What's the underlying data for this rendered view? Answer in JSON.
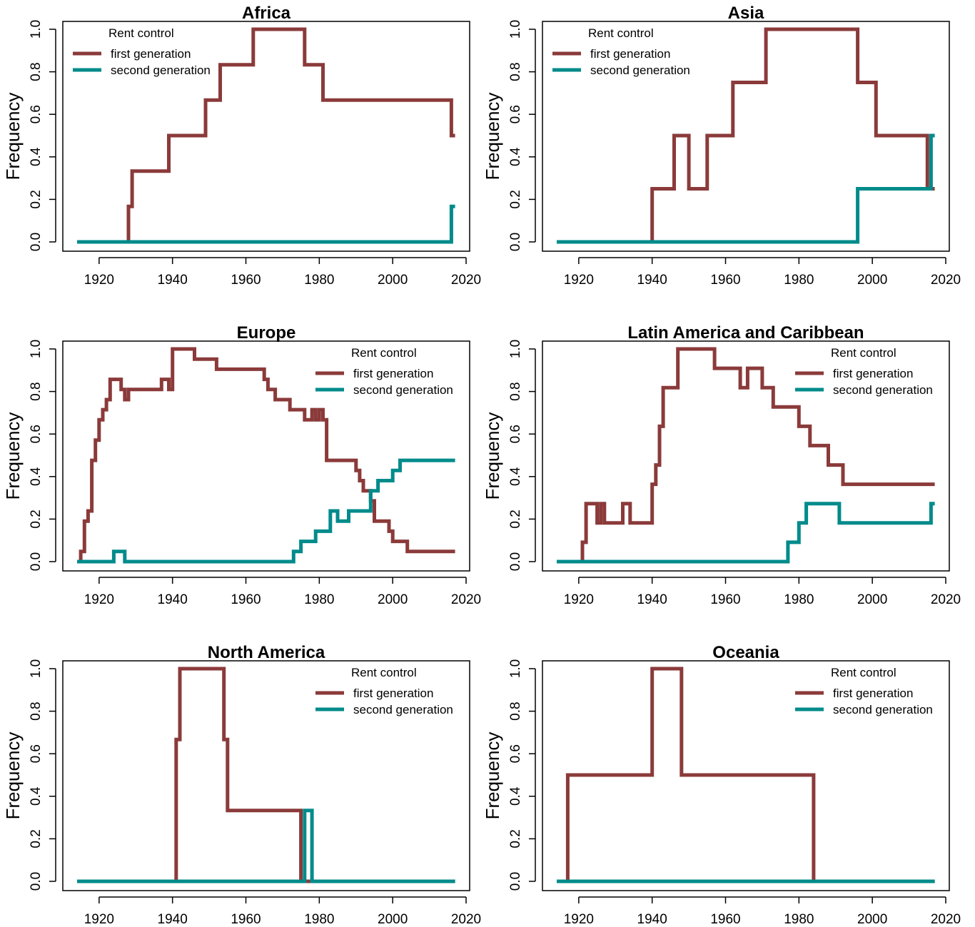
{
  "colors": {
    "first_generation": "#8B3A3A",
    "second_generation": "#008B8B"
  },
  "chart_data": [
    {
      "type": "line",
      "title": "Africa",
      "ylabel": "Frequency",
      "xlabel": "",
      "xlim": [
        1914,
        2017
      ],
      "ylim": [
        0,
        1
      ],
      "xticks": [
        1920,
        1940,
        1960,
        1980,
        2000,
        2020
      ],
      "yticks": [
        "0.0",
        "0.2",
        "0.4",
        "0.6",
        "0.8",
        "1.0"
      ],
      "legend": {
        "placement": "top-left",
        "title": "Rent control",
        "entries": [
          "first generation",
          "second generation"
        ]
      },
      "series": [
        {
          "name": "first generation",
          "step": true,
          "x": [
            1914,
            1928,
            1929,
            1939,
            1949,
            1953,
            1962,
            1976,
            1981,
            2016,
            2017
          ],
          "y": [
            0,
            0.1667,
            0.3333,
            0.5,
            0.6667,
            0.8333,
            1.0,
            0.8333,
            0.6667,
            0.5,
            0.5
          ]
        },
        {
          "name": "second generation",
          "step": true,
          "x": [
            1914,
            2016,
            2017
          ],
          "y": [
            0,
            0.1667,
            0.1667
          ]
        }
      ]
    },
    {
      "type": "line",
      "title": "Asia",
      "ylabel": "Frequency",
      "xlabel": "",
      "xlim": [
        1914,
        2017
      ],
      "ylim": [
        0,
        1
      ],
      "xticks": [
        1920,
        1940,
        1960,
        1980,
        2000,
        2020
      ],
      "yticks": [
        "0.0",
        "0.2",
        "0.4",
        "0.6",
        "0.8",
        "1.0"
      ],
      "legend": {
        "placement": "top-left",
        "title": "Rent control",
        "entries": [
          "first generation",
          "second generation"
        ]
      },
      "series": [
        {
          "name": "first generation",
          "step": true,
          "x": [
            1914,
            1940,
            1946,
            1950,
            1955,
            1962,
            1971,
            1996,
            2001,
            2015,
            2017
          ],
          "y": [
            0,
            0.25,
            0.5,
            0.25,
            0.5,
            0.75,
            1.0,
            0.75,
            0.5,
            0.25,
            0.25
          ]
        },
        {
          "name": "second generation",
          "step": true,
          "x": [
            1914,
            1996,
            2016,
            2017
          ],
          "y": [
            0,
            0.25,
            0.5,
            0.5
          ]
        }
      ]
    },
    {
      "type": "line",
      "title": "Europe",
      "ylabel": "Frequency",
      "xlabel": "",
      "xlim": [
        1914,
        2017
      ],
      "ylim": [
        0,
        1
      ],
      "xticks": [
        1920,
        1940,
        1960,
        1980,
        2000,
        2020
      ],
      "yticks": [
        "0.0",
        "0.2",
        "0.4",
        "0.6",
        "0.8",
        "1.0"
      ],
      "legend": {
        "placement": "top-right",
        "title": "Rent control",
        "entries": [
          "first generation",
          "second generation"
        ]
      },
      "series": [
        {
          "name": "first generation",
          "step": true,
          "x": [
            1914,
            1915,
            1916,
            1917,
            1918,
            1919,
            1920,
            1921,
            1922,
            1923,
            1926,
            1927,
            1928,
            1937,
            1939,
            1940,
            1946,
            1952,
            1965,
            1966,
            1968,
            1972,
            1976,
            1978,
            1979,
            1980,
            1981,
            1982,
            1990,
            1991,
            1992,
            1994,
            1995,
            1999,
            2000,
            2004,
            2017
          ],
          "y": [
            0,
            0.0476,
            0.1905,
            0.2381,
            0.4762,
            0.5714,
            0.6667,
            0.7143,
            0.7619,
            0.8571,
            0.8095,
            0.7619,
            0.8095,
            0.8571,
            0.8095,
            1.0,
            0.9524,
            0.9048,
            0.8571,
            0.8095,
            0.7619,
            0.7143,
            0.6667,
            0.7143,
            0.6667,
            0.7143,
            0.6667,
            0.4762,
            0.4286,
            0.381,
            0.3333,
            0.2857,
            0.1905,
            0.1429,
            0.0952,
            0.0476,
            0.0476
          ]
        },
        {
          "name": "second generation",
          "step": true,
          "x": [
            1914,
            1924,
            1927,
            1973,
            1975,
            1979,
            1983,
            1985,
            1988,
            1994,
            1996,
            2000,
            2002,
            2017
          ],
          "y": [
            0,
            0.0476,
            0,
            0.0476,
            0.0952,
            0.1429,
            0.2381,
            0.1905,
            0.2381,
            0.3333,
            0.381,
            0.4286,
            0.4762,
            0.4762
          ]
        }
      ]
    },
    {
      "type": "line",
      "title": "Latin America and Caribbean",
      "ylabel": "Frequency",
      "xlabel": "",
      "xlim": [
        1914,
        2017
      ],
      "ylim": [
        0,
        1
      ],
      "xticks": [
        1920,
        1940,
        1960,
        1980,
        2000,
        2020
      ],
      "yticks": [
        "0.0",
        "0.2",
        "0.4",
        "0.6",
        "0.8",
        "1.0"
      ],
      "legend": {
        "placement": "top-right",
        "title": "Rent control",
        "entries": [
          "first generation",
          "second generation"
        ]
      },
      "series": [
        {
          "name": "first generation",
          "step": true,
          "x": [
            1914,
            1921,
            1922,
            1925,
            1926,
            1927,
            1928,
            1932,
            1934,
            1940,
            1941,
            1942,
            1943,
            1944,
            1947,
            1957,
            1964,
            1966,
            1970,
            1973,
            1980,
            1983,
            1988,
            1992,
            2017
          ],
          "y": [
            0,
            0.0909,
            0.2727,
            0.1818,
            0.2727,
            0.1818,
            0.1818,
            0.2727,
            0.1818,
            0.3636,
            0.4545,
            0.6364,
            0.8182,
            0.8182,
            1.0,
            0.9091,
            0.8182,
            0.9091,
            0.8182,
            0.7273,
            0.6364,
            0.5455,
            0.4545,
            0.3636,
            0.3636
          ]
        },
        {
          "name": "second generation",
          "step": true,
          "x": [
            1914,
            1977,
            1980,
            1982,
            1991,
            2016,
            2017
          ],
          "y": [
            0,
            0.0909,
            0.1818,
            0.2727,
            0.1818,
            0.2727,
            0.2727
          ]
        }
      ]
    },
    {
      "type": "line",
      "title": "North America",
      "ylabel": "Frequency",
      "xlabel": "",
      "xlim": [
        1914,
        2017
      ],
      "ylim": [
        0,
        1
      ],
      "xticks": [
        1920,
        1940,
        1960,
        1980,
        2000,
        2020
      ],
      "yticks": [
        "0.0",
        "0.2",
        "0.4",
        "0.6",
        "0.8",
        "1.0"
      ],
      "legend": {
        "placement": "top-right",
        "title": "Rent control",
        "entries": [
          "first generation",
          "second generation"
        ]
      },
      "series": [
        {
          "name": "first generation",
          "step": true,
          "x": [
            1914,
            1941,
            1942,
            1954,
            1955,
            1975,
            2017
          ],
          "y": [
            0,
            0.6667,
            1.0,
            0.6667,
            0.3333,
            0,
            0
          ]
        },
        {
          "name": "second generation",
          "step": true,
          "x": [
            1914,
            1976,
            1978,
            2017
          ],
          "y": [
            0,
            0.3333,
            0,
            0
          ]
        }
      ]
    },
    {
      "type": "line",
      "title": "Oceania",
      "ylabel": "Frequency",
      "xlabel": "",
      "xlim": [
        1914,
        2017
      ],
      "ylim": [
        0,
        1
      ],
      "xticks": [
        1920,
        1940,
        1960,
        1980,
        2000,
        2020
      ],
      "yticks": [
        "0.0",
        "0.2",
        "0.4",
        "0.6",
        "0.8",
        "1.0"
      ],
      "legend": {
        "placement": "top-right",
        "title": "Rent control",
        "entries": [
          "first generation",
          "second generation"
        ]
      },
      "series": [
        {
          "name": "first generation",
          "step": true,
          "x": [
            1914,
            1917,
            1940,
            1948,
            1984,
            2017
          ],
          "y": [
            0,
            0.5,
            1.0,
            0.5,
            0,
            0
          ]
        },
        {
          "name": "second generation",
          "step": true,
          "x": [
            1914,
            2017
          ],
          "y": [
            0,
            0
          ]
        }
      ]
    }
  ]
}
